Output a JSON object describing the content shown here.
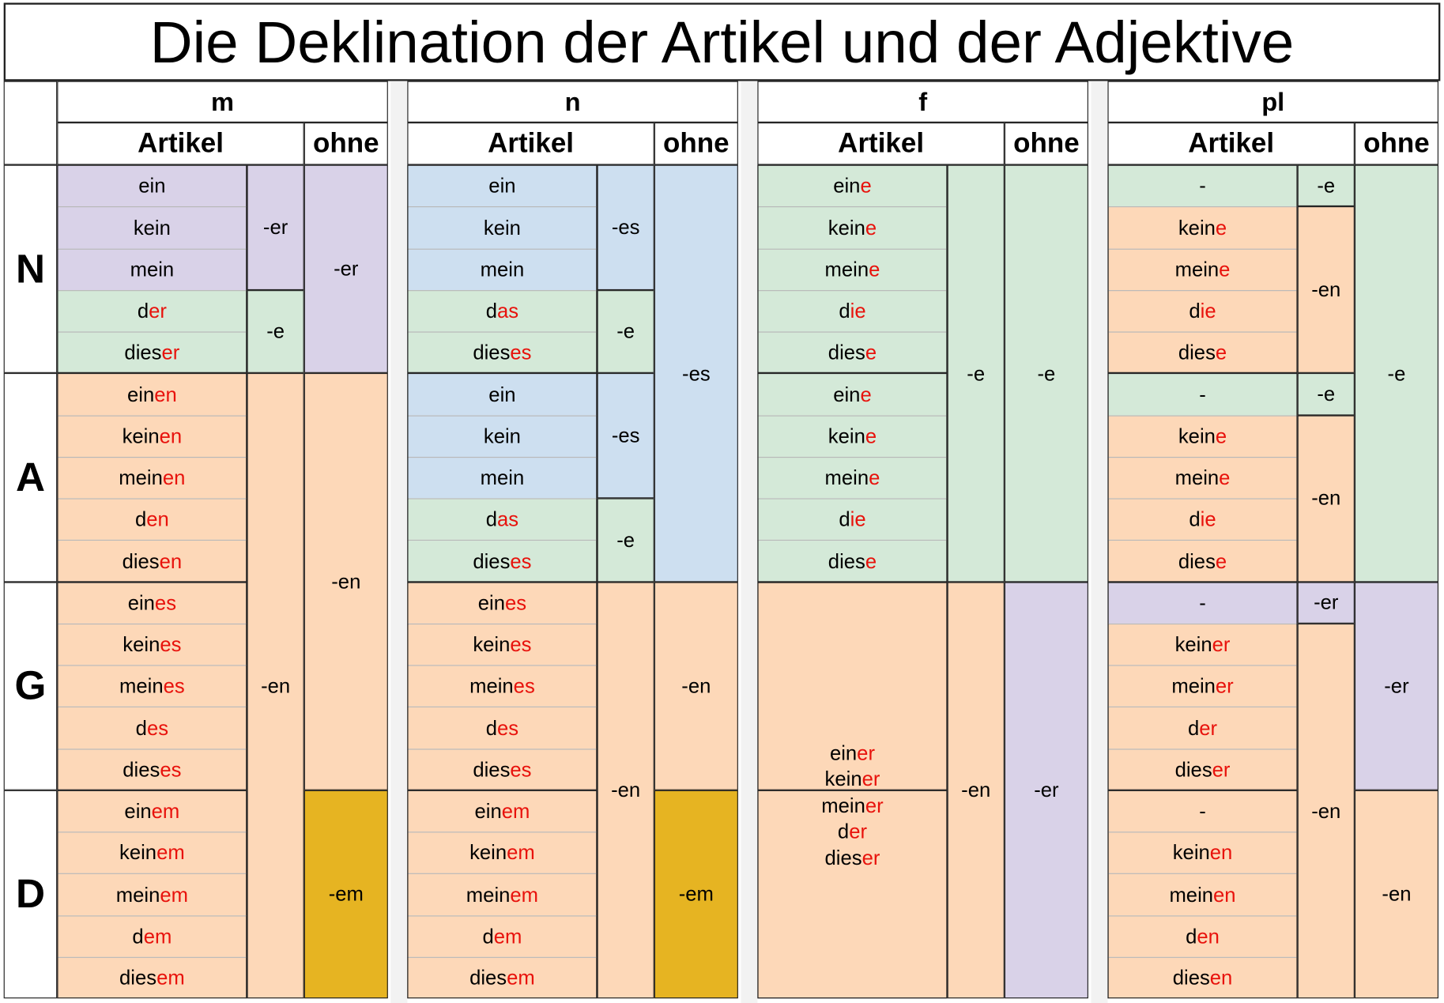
{
  "title": "Die Deklination der Artikel und der Adjektive",
  "colors": {
    "lavender": "#d9d2e8",
    "blue": "#cddff0",
    "green": "#d4e9d8",
    "peach": "#fdd8b8",
    "gold": "#e6b422",
    "ending_red": "#e8120c"
  },
  "cases": [
    "N",
    "A",
    "G",
    "D"
  ],
  "genders": [
    {
      "key": "m",
      "label": "m",
      "artikel_label": "Artikel",
      "ohne_label": "ohne",
      "articles": [
        {
          "stem": "ein",
          "end": "",
          "color": "lavender"
        },
        {
          "stem": "kein",
          "end": "",
          "color": "lavender"
        },
        {
          "stem": "mein",
          "end": "",
          "color": "lavender"
        },
        {
          "stem": "d",
          "end": "er",
          "color": "green"
        },
        {
          "stem": "dies",
          "end": "er",
          "color": "green"
        },
        {
          "stem": "ein",
          "end": "en",
          "color": "peach"
        },
        {
          "stem": "kein",
          "end": "en",
          "color": "peach"
        },
        {
          "stem": "mein",
          "end": "en",
          "color": "peach"
        },
        {
          "stem": "d",
          "end": "en",
          "color": "peach"
        },
        {
          "stem": "dies",
          "end": "en",
          "color": "peach"
        },
        {
          "stem": "ein",
          "end": "es",
          "color": "peach"
        },
        {
          "stem": "kein",
          "end": "es",
          "color": "peach"
        },
        {
          "stem": "mein",
          "end": "es",
          "color": "peach"
        },
        {
          "stem": "d",
          "end": "es",
          "color": "peach"
        },
        {
          "stem": "dies",
          "end": "es",
          "color": "peach"
        },
        {
          "stem": "ein",
          "end": "em",
          "color": "peach"
        },
        {
          "stem": "kein",
          "end": "em",
          "color": "peach"
        },
        {
          "stem": "mein",
          "end": "em",
          "color": "peach"
        },
        {
          "stem": "d",
          "end": "em",
          "color": "peach"
        },
        {
          "stem": "dies",
          "end": "em",
          "color": "peach"
        }
      ],
      "adj_endings": [
        {
          "text": "-er",
          "from": 0,
          "span": 3,
          "color": "lavender"
        },
        {
          "text": "-e",
          "from": 3,
          "span": 2,
          "color": "green"
        },
        {
          "text": "-en",
          "from": 5,
          "span": 15,
          "color": "peach"
        }
      ],
      "ohne_endings": [
        {
          "text": "-er",
          "from": 0,
          "span": 5,
          "color": "lavender"
        },
        {
          "text": "-en",
          "from": 5,
          "span": 10,
          "color": "peach"
        },
        {
          "text": "-em",
          "from": 15,
          "span": 5,
          "color": "gold"
        }
      ]
    },
    {
      "key": "n",
      "label": "n",
      "artikel_label": "Artikel",
      "ohne_label": "ohne",
      "articles": [
        {
          "stem": "ein",
          "end": "",
          "color": "blue"
        },
        {
          "stem": "kein",
          "end": "",
          "color": "blue"
        },
        {
          "stem": "mein",
          "end": "",
          "color": "blue"
        },
        {
          "stem": "d",
          "end": "as",
          "color": "green"
        },
        {
          "stem": "dies",
          "end": "es",
          "color": "green"
        },
        {
          "stem": "ein",
          "end": "",
          "color": "blue"
        },
        {
          "stem": "kein",
          "end": "",
          "color": "blue"
        },
        {
          "stem": "mein",
          "end": "",
          "color": "blue"
        },
        {
          "stem": "d",
          "end": "as",
          "color": "green"
        },
        {
          "stem": "dies",
          "end": "es",
          "color": "green"
        },
        {
          "stem": "ein",
          "end": "es",
          "color": "peach"
        },
        {
          "stem": "kein",
          "end": "es",
          "color": "peach"
        },
        {
          "stem": "mein",
          "end": "es",
          "color": "peach"
        },
        {
          "stem": "d",
          "end": "es",
          "color": "peach"
        },
        {
          "stem": "dies",
          "end": "es",
          "color": "peach"
        },
        {
          "stem": "ein",
          "end": "em",
          "color": "peach"
        },
        {
          "stem": "kein",
          "end": "em",
          "color": "peach"
        },
        {
          "stem": "mein",
          "end": "em",
          "color": "peach"
        },
        {
          "stem": "d",
          "end": "em",
          "color": "peach"
        },
        {
          "stem": "dies",
          "end": "em",
          "color": "peach"
        }
      ],
      "adj_endings": [
        {
          "text": "-es",
          "from": 0,
          "span": 3,
          "color": "blue"
        },
        {
          "text": "-e",
          "from": 3,
          "span": 2,
          "color": "green"
        },
        {
          "text": "-es",
          "from": 5,
          "span": 3,
          "color": "blue"
        },
        {
          "text": "-e",
          "from": 8,
          "span": 2,
          "color": "green"
        },
        {
          "text": "-en",
          "from": 10,
          "span": 10,
          "color": "peach"
        }
      ],
      "ohne_endings": [
        {
          "text": "-es",
          "from": 0,
          "span": 10,
          "color": "blue"
        },
        {
          "text": "-en",
          "from": 10,
          "span": 5,
          "color": "peach"
        },
        {
          "text": "-em",
          "from": 15,
          "span": 5,
          "color": "gold"
        }
      ]
    },
    {
      "key": "f",
      "label": "f",
      "artikel_label": "Artikel",
      "ohne_label": "ohne",
      "articles": [
        {
          "stem": "ein",
          "end": "e",
          "color": "green"
        },
        {
          "stem": "kein",
          "end": "e",
          "color": "green"
        },
        {
          "stem": "mein",
          "end": "e",
          "color": "green"
        },
        {
          "stem": "d",
          "end": "ie",
          "color": "green"
        },
        {
          "stem": "dies",
          "end": "e",
          "color": "green"
        },
        {
          "stem": "ein",
          "end": "e",
          "color": "green"
        },
        {
          "stem": "kein",
          "end": "e",
          "color": "green"
        },
        {
          "stem": "mein",
          "end": "e",
          "color": "green"
        },
        {
          "stem": "d",
          "end": "ie",
          "color": "green"
        },
        {
          "stem": "dies",
          "end": "e",
          "color": "green"
        }
      ],
      "gd_block": {
        "from": 10,
        "span": 10,
        "color": "peach",
        "words": [
          {
            "stem": "ein",
            "end": "er"
          },
          {
            "stem": "kein",
            "end": "er"
          },
          {
            "stem": "mein",
            "end": "er"
          },
          {
            "stem": "d",
            "end": "er"
          },
          {
            "stem": "dies",
            "end": "er"
          }
        ]
      },
      "adj_endings": [
        {
          "text": "-e",
          "from": 0,
          "span": 10,
          "color": "green"
        },
        {
          "text": "-en",
          "from": 10,
          "span": 10,
          "color": "peach"
        }
      ],
      "ohne_endings": [
        {
          "text": "-e",
          "from": 0,
          "span": 10,
          "color": "green"
        },
        {
          "text": "-er",
          "from": 10,
          "span": 10,
          "color": "lavender"
        }
      ]
    },
    {
      "key": "pl",
      "label": "pl",
      "artikel_label": "Artikel",
      "ohne_label": "ohne",
      "articles": [
        {
          "stem": "-",
          "end": "",
          "color": "green"
        },
        {
          "stem": "kein",
          "end": "e",
          "color": "peach"
        },
        {
          "stem": "mein",
          "end": "e",
          "color": "peach"
        },
        {
          "stem": "d",
          "end": "ie",
          "color": "peach"
        },
        {
          "stem": "dies",
          "end": "e",
          "color": "peach"
        },
        {
          "stem": "-",
          "end": "",
          "color": "green"
        },
        {
          "stem": "kein",
          "end": "e",
          "color": "peach"
        },
        {
          "stem": "mein",
          "end": "e",
          "color": "peach"
        },
        {
          "stem": "d",
          "end": "ie",
          "color": "peach"
        },
        {
          "stem": "dies",
          "end": "e",
          "color": "peach"
        },
        {
          "stem": "-",
          "end": "",
          "color": "lavender"
        },
        {
          "stem": "kein",
          "end": "er",
          "color": "peach"
        },
        {
          "stem": "mein",
          "end": "er",
          "color": "peach"
        },
        {
          "stem": "d",
          "end": "er",
          "color": "peach"
        },
        {
          "stem": "dies",
          "end": "er",
          "color": "peach"
        },
        {
          "stem": "-",
          "end": "",
          "color": "peach"
        },
        {
          "stem": "kein",
          "end": "en",
          "color": "peach"
        },
        {
          "stem": "mein",
          "end": "en",
          "color": "peach"
        },
        {
          "stem": "d",
          "end": "en",
          "color": "peach"
        },
        {
          "stem": "dies",
          "end": "en",
          "color": "peach"
        }
      ],
      "adj_endings": [
        {
          "text": "-e",
          "from": 0,
          "span": 1,
          "color": "green"
        },
        {
          "text": "-en",
          "from": 1,
          "span": 4,
          "color": "peach"
        },
        {
          "text": "-e",
          "from": 5,
          "span": 1,
          "color": "green"
        },
        {
          "text": "-en",
          "from": 6,
          "span": 4,
          "color": "peach"
        },
        {
          "text": "-er",
          "from": 10,
          "span": 1,
          "color": "lavender"
        },
        {
          "text": "-en",
          "from": 11,
          "span": 9,
          "color": "peach"
        }
      ],
      "ohne_endings": [
        {
          "text": "-e",
          "from": 0,
          "span": 10,
          "color": "green"
        },
        {
          "text": "-er",
          "from": 10,
          "span": 5,
          "color": "lavender"
        },
        {
          "text": "-en",
          "from": 15,
          "span": 5,
          "color": "peach"
        }
      ]
    }
  ]
}
